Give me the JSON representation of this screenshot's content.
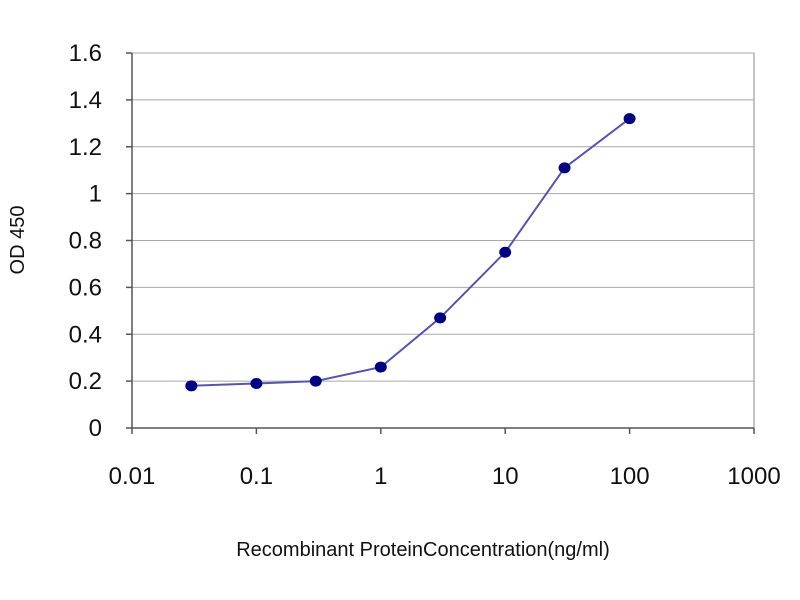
{
  "chart_data": {
    "type": "line",
    "title": "",
    "xlabel": "Recombinant ProteinConcentration(ng/ml)",
    "ylabel": "OD 450",
    "x_scale": "log",
    "xlim": [
      0.01,
      1000
    ],
    "ylim": [
      0,
      1.6
    ],
    "x_ticks": [
      0.01,
      0.1,
      1,
      10,
      100,
      1000
    ],
    "x_tick_labels": [
      "0.01",
      "0.1",
      "1",
      "10",
      "100",
      "1000"
    ],
    "y_ticks": [
      0,
      0.2,
      0.4,
      0.6,
      0.8,
      1,
      1.2,
      1.4,
      1.6
    ],
    "y_tick_labels": [
      "0",
      "0.2",
      "0.4",
      "0.6",
      "0.8",
      "1",
      "1.2",
      "1.4",
      "1.6"
    ],
    "grid": true,
    "legend": "none",
    "series": [
      {
        "x": [
          0.03,
          0.1,
          0.3,
          1,
          3,
          10,
          30,
          100
        ],
        "y": [
          0.18,
          0.19,
          0.2,
          0.26,
          0.47,
          0.75,
          1.11,
          1.32
        ],
        "color": "#5555aa",
        "marker_color": "#000080"
      }
    ]
  }
}
